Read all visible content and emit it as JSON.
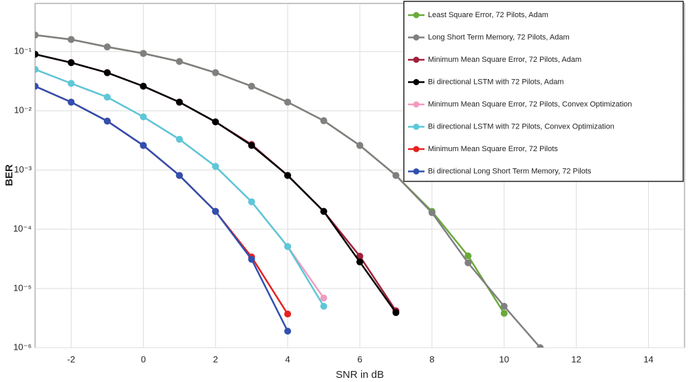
{
  "chart_data": {
    "type": "line",
    "xlabel": "SNR in dB",
    "ylabel": "BER",
    "ylog": true,
    "grid": true,
    "legend": "upper right",
    "x": [
      -3,
      -2,
      -1,
      0,
      1,
      2,
      3,
      4,
      5,
      6,
      7,
      8,
      9,
      10,
      11
    ],
    "xlim": [
      -3,
      15
    ],
    "xticks": [
      -2,
      0,
      2,
      4,
      6,
      8,
      10,
      12,
      14
    ],
    "ylim": [
      1e-06,
      0.65
    ],
    "yticks": [
      {
        "value": 0.1,
        "label": "10⁻¹"
      },
      {
        "value": 0.01,
        "label": "10⁻²"
      },
      {
        "value": 0.001,
        "label": "10⁻³"
      },
      {
        "value": 0.0001,
        "label": "10⁻⁴"
      },
      {
        "value": 1e-05,
        "label": "10⁻⁵"
      },
      {
        "value": 1e-06,
        "label": "10⁻⁶"
      }
    ],
    "series": [
      {
        "name": "Least Square Error, 72 Pilots, Adam",
        "color": "#6aaa3a",
        "values": [
          0.19,
          0.16,
          0.12,
          0.093,
          0.068,
          0.044,
          0.026,
          0.014,
          0.0068,
          0.0026,
          0.00081,
          0.0002,
          3.55e-05,
          3.8e-06,
          null
        ]
      },
      {
        "name": "Long Short Term Memory, 72 Pilots, Adam",
        "color": "#808080",
        "values": [
          0.19,
          0.16,
          0.12,
          0.093,
          0.068,
          0.044,
          0.026,
          0.014,
          0.0068,
          0.0026,
          0.00081,
          0.00019,
          2.7e-05,
          5e-06,
          1e-06
        ]
      },
      {
        "name": "Minimum Mean Square Error, 72 Pilots, Adam",
        "color": "#a0203a",
        "values": [
          0.09,
          0.065,
          0.044,
          0.026,
          0.014,
          0.0065,
          0.0027,
          0.00081,
          0.0002,
          3.5e-05,
          4.2e-06,
          null,
          null,
          null,
          null
        ]
      },
      {
        "name": "Bi directional LSTM with 72 Pilots, Adam",
        "color": "#000000",
        "values": [
          0.09,
          0.065,
          0.044,
          0.026,
          0.014,
          0.0065,
          0.0026,
          0.00081,
          0.0002,
          2.8e-05,
          3.9e-06,
          null,
          null,
          null,
          null
        ]
      },
      {
        "name": "Minimum Mean Square Error, 72 Pilots, Convex Optimization",
        "color": "#f29bc0",
        "values": [
          0.05,
          0.029,
          0.017,
          0.0079,
          0.0033,
          0.00115,
          0.00029,
          5.1e-05,
          6.9e-06,
          null,
          null,
          null,
          null,
          null,
          null
        ]
      },
      {
        "name": "Bi directional LSTM with 72 Pilots, Convex Optimization",
        "color": "#5bc8d8",
        "values": [
          0.05,
          0.029,
          0.017,
          0.0079,
          0.0033,
          0.00115,
          0.00029,
          5.1e-05,
          5e-06,
          null,
          null,
          null,
          null,
          null,
          null
        ]
      },
      {
        "name": "Minimum Mean Square Error, 72 Pilots",
        "color": "#e82020",
        "values": [
          0.026,
          0.014,
          0.0067,
          0.0026,
          0.00081,
          0.0002,
          3.4e-05,
          3.7e-06,
          null,
          null,
          null,
          null,
          null,
          null,
          null
        ]
      },
      {
        "name": "Bi directional Long Short Term Memory, 72 Pilots",
        "color": "#3050b0",
        "values": [
          0.026,
          0.014,
          0.0067,
          0.0026,
          0.00081,
          0.0002,
          3.1e-05,
          1.9e-06,
          null,
          null,
          null,
          null,
          null,
          null,
          null
        ]
      }
    ]
  }
}
